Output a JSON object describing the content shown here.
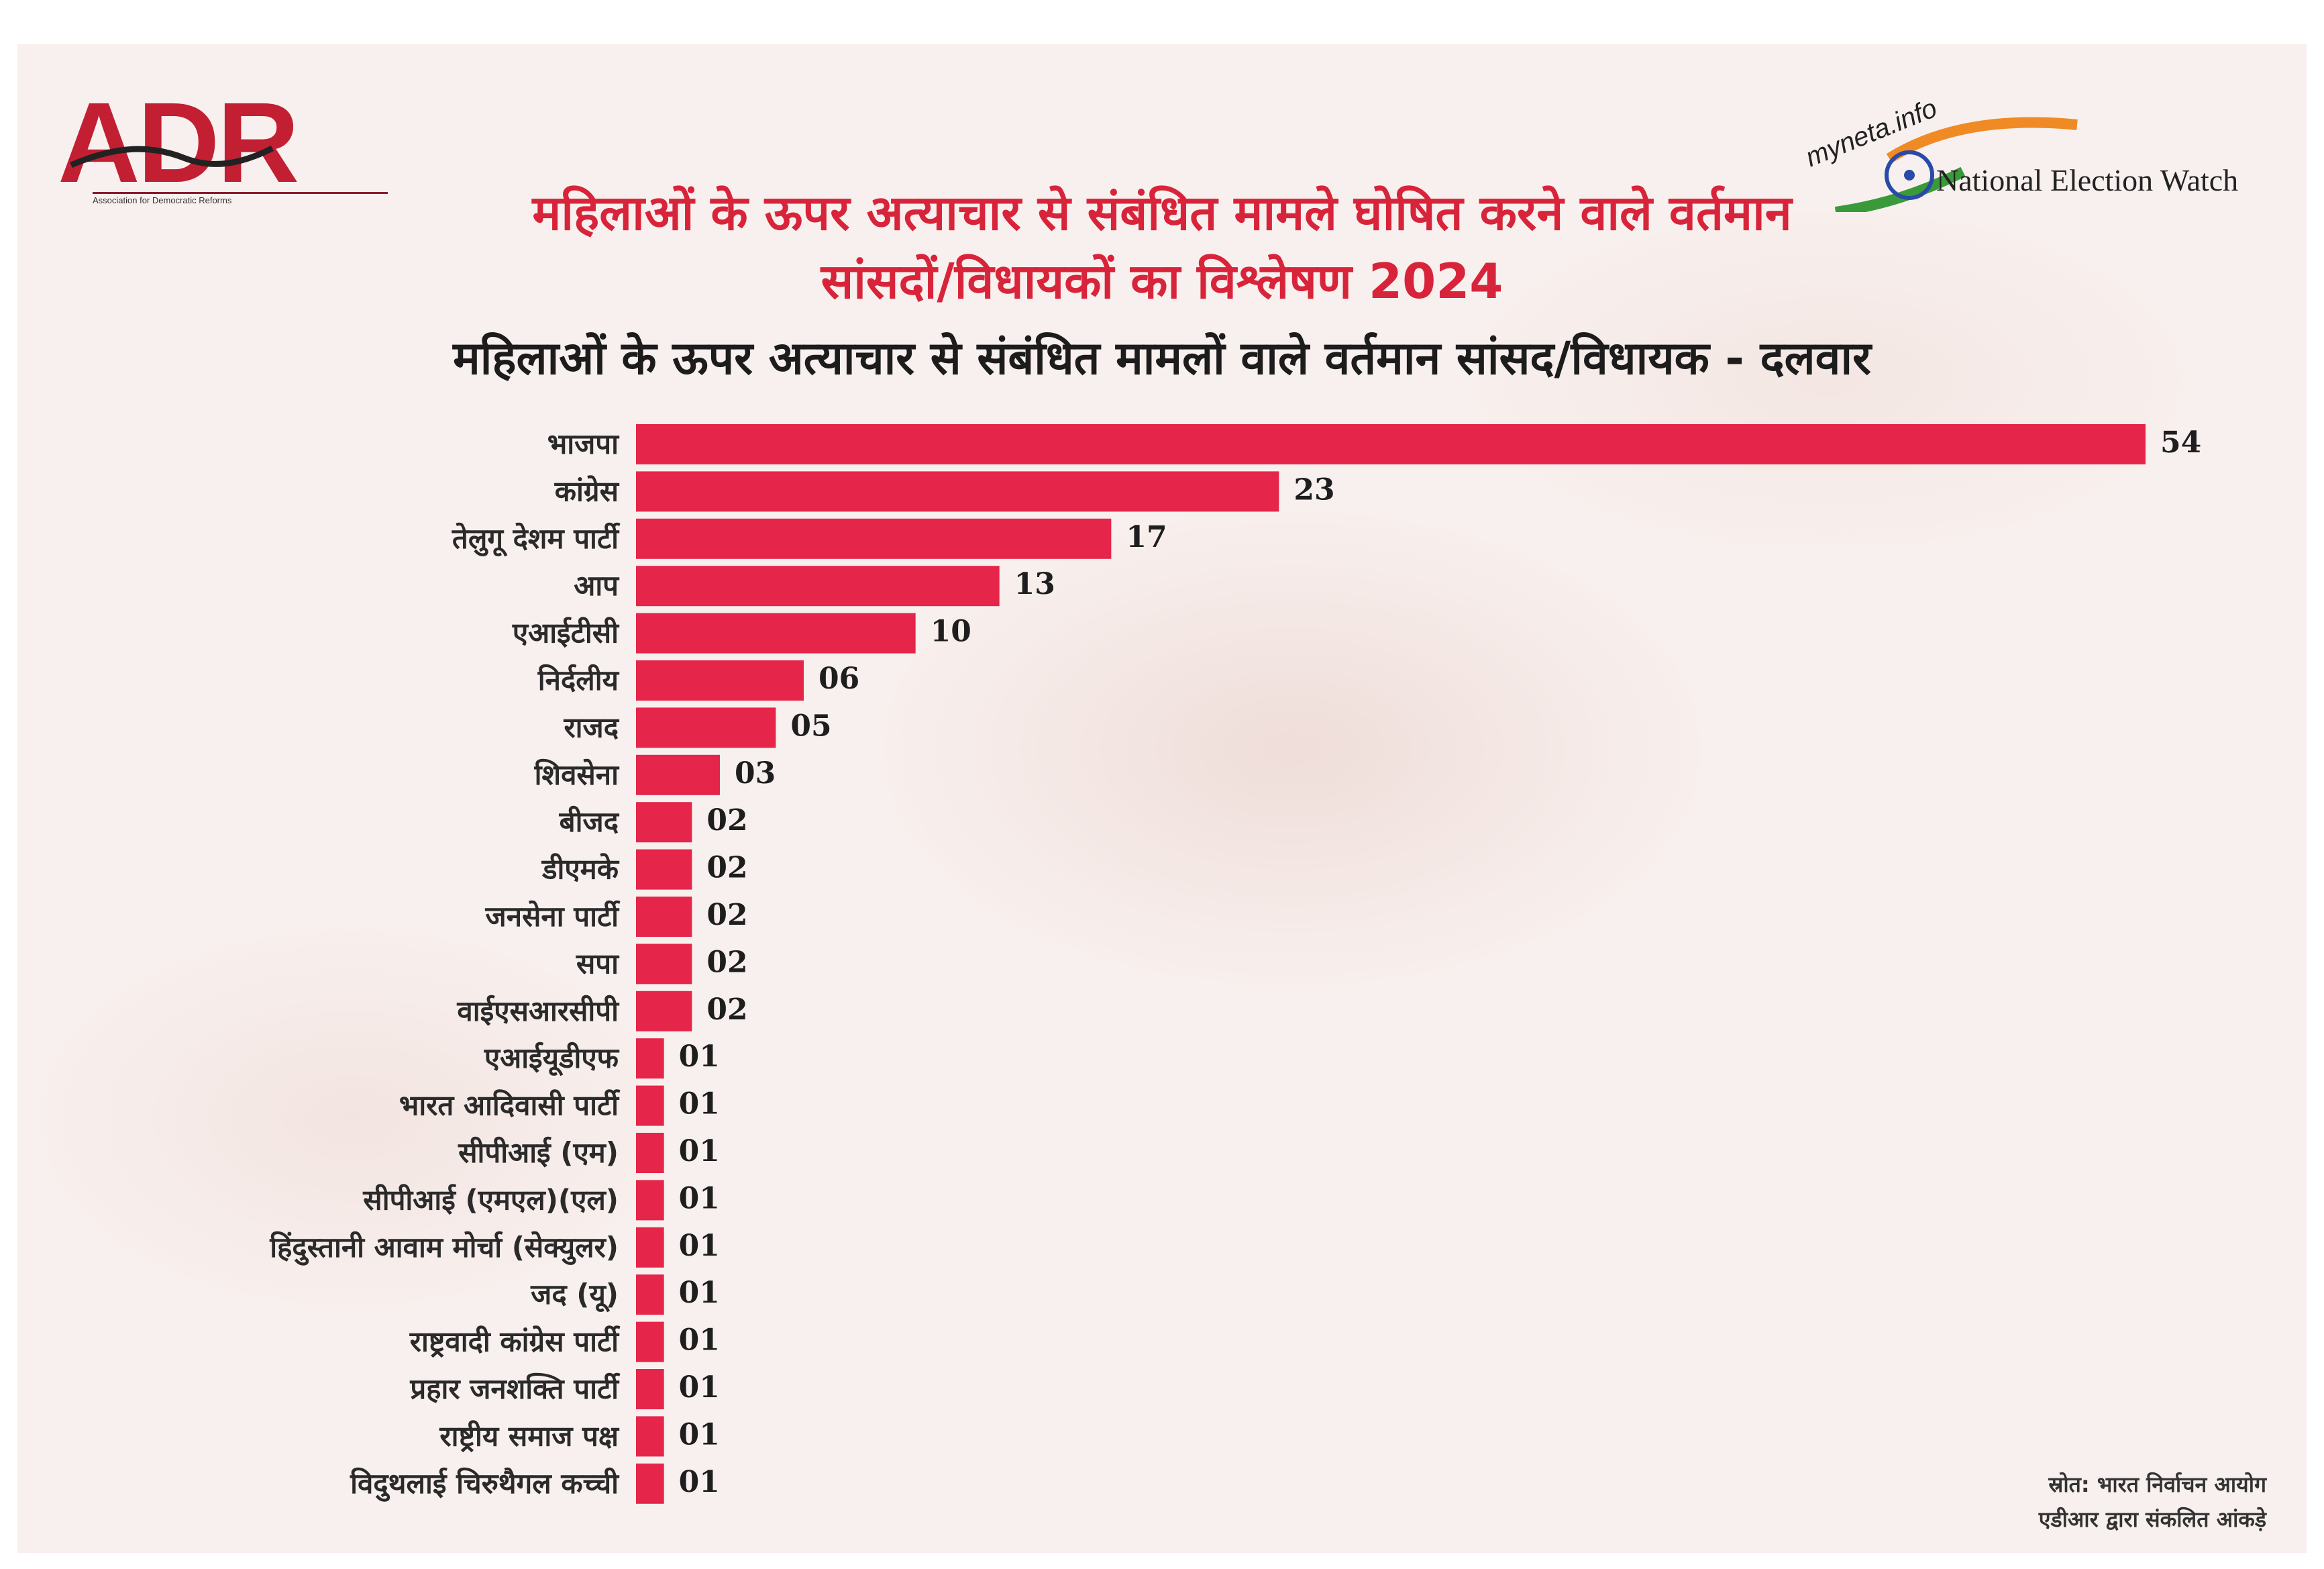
{
  "header": {
    "adr_logo_text": "ADR",
    "adr_tagline": "Association for Democratic Reforms",
    "myneta_text": "myneta.info",
    "new_text": "National Election Watch"
  },
  "title_line1": "महिलाओं के ऊपर अत्याचार से संबंधित मामले घोषित करने वाले वर्तमान",
  "title_line2": "सांसदों/विधायकों का विश्लेषण 2024",
  "subtitle": "महिलाओं के ऊपर अत्याचार से संबंधित मामलों वाले वर्तमान सांसद/विधायक - दलवार",
  "source_line1": "स्रोत: भारत निर्वाचन आयोग",
  "source_line2": "एडीआर द्वारा संकलित आंकड़े",
  "colors": {
    "bar": "#e5254a",
    "title": "#d8243a",
    "brand": "#c21f33"
  },
  "chart_data": {
    "type": "bar",
    "orientation": "horizontal",
    "categories": [
      "भाजपा",
      "कांग्रेस",
      "तेलुगू देशम पार्टी",
      "आप",
      "एआईटीसी",
      "निर्दलीय",
      "राजद",
      "शिवसेना",
      "बीजद",
      "डीएमके",
      "जनसेना पार्टी",
      "सपा",
      "वाईएसआरसीपी",
      "एआईयूडीएफ",
      "भारत आदिवासी पार्टी",
      "सीपीआई (एम)",
      "सीपीआई (एमएल)(एल)",
      "हिंदुस्तानी आवाम मोर्चा (सेक्युलर)",
      "जद (यू)",
      "राष्ट्रवादी कांग्रेस पार्टी",
      "प्रहार जनशक्ति पार्टी",
      "राष्ट्रीय समाज पक्ष",
      "विदुथलाई चिरुथैगल कच्ची"
    ],
    "values": [
      54,
      23,
      17,
      13,
      10,
      6,
      5,
      3,
      2,
      2,
      2,
      2,
      2,
      1,
      1,
      1,
      1,
      1,
      1,
      1,
      1,
      1,
      1
    ],
    "value_labels": [
      "54",
      "23",
      "17",
      "13",
      "10",
      "06",
      "05",
      "03",
      "02",
      "02",
      "02",
      "02",
      "02",
      "01",
      "01",
      "01",
      "01",
      "01",
      "01",
      "01",
      "01",
      "01",
      "01"
    ],
    "grid": false
  }
}
